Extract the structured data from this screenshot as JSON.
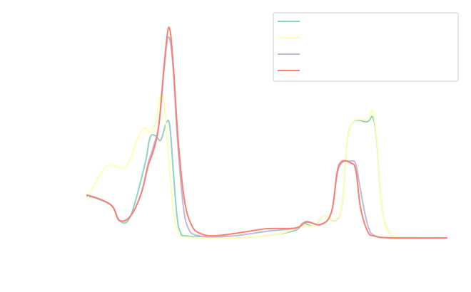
{
  "chart_data": {
    "type": "line",
    "title": "",
    "xlabel": "",
    "ylabel": "",
    "xlim": [
      0,
      100
    ],
    "ylim": [
      0,
      100
    ],
    "grid": false,
    "axes_visible": false,
    "legend": {
      "placement": "top-right",
      "entries": [
        "",
        "",
        "",
        ""
      ]
    },
    "series": [
      {
        "color": "#8dd3c7",
        "points": [
          [
            0,
            19
          ],
          [
            3,
            17.8
          ],
          [
            7,
            14.3
          ],
          [
            9,
            7.8
          ],
          [
            12,
            9.6
          ],
          [
            16,
            33
          ],
          [
            17.5,
            45.6
          ],
          [
            19,
            46.6
          ],
          [
            20.5,
            44.6
          ],
          [
            22,
            52.4
          ],
          [
            23,
            51
          ],
          [
            24,
            30
          ],
          [
            25,
            10
          ],
          [
            26,
            2.5
          ],
          [
            28,
            0.8
          ],
          [
            40,
            0
          ],
          [
            50,
            1
          ],
          [
            58,
            3.5
          ],
          [
            60,
            6.7
          ],
          [
            63,
            5.5
          ],
          [
            66,
            10.2
          ],
          [
            69,
            8
          ],
          [
            71,
            16
          ],
          [
            73,
            50
          ],
          [
            78,
            53
          ],
          [
            79.4,
            55
          ],
          [
            80.5,
            45
          ],
          [
            82,
            14
          ],
          [
            84,
            2.5
          ],
          [
            87,
            0.3
          ],
          [
            100,
            0
          ]
        ]
      },
      {
        "color": "#ffffb3",
        "points": [
          [
            0,
            17.5
          ],
          [
            2,
            24
          ],
          [
            5,
            32
          ],
          [
            7,
            33.2
          ],
          [
            10,
            31.8
          ],
          [
            12,
            36
          ],
          [
            14,
            45
          ],
          [
            16,
            50
          ],
          [
            17.5,
            48
          ],
          [
            19,
            52.6
          ],
          [
            20.5,
            65
          ],
          [
            21.5,
            60
          ],
          [
            23,
            30
          ],
          [
            24,
            12
          ],
          [
            25.5,
            2
          ],
          [
            28,
            0.3
          ],
          [
            40,
            0
          ],
          [
            50,
            1
          ],
          [
            55,
            2.5
          ],
          [
            60,
            5.5
          ],
          [
            63,
            5.5
          ],
          [
            66,
            10.2
          ],
          [
            69,
            8.2
          ],
          [
            71,
            16
          ],
          [
            73,
            50
          ],
          [
            78,
            54
          ],
          [
            79.3,
            58
          ],
          [
            80.5,
            46
          ],
          [
            82,
            14
          ],
          [
            84,
            2.5
          ],
          [
            87,
            0.3
          ],
          [
            100,
            0
          ]
        ]
      },
      {
        "color": "#bebada",
        "points": [
          [
            0,
            19.5
          ],
          [
            3,
            18
          ],
          [
            7,
            14.5
          ],
          [
            9,
            8
          ],
          [
            12,
            9.8
          ],
          [
            15,
            20
          ],
          [
            17,
            34
          ],
          [
            18.5,
            42
          ],
          [
            20,
            52
          ],
          [
            21.5,
            78
          ],
          [
            22.6,
            91.6
          ],
          [
            23.8,
            80
          ],
          [
            25,
            48
          ],
          [
            26.5,
            18
          ],
          [
            28,
            5
          ],
          [
            31,
            1
          ],
          [
            40,
            0.8
          ],
          [
            50,
            3
          ],
          [
            58,
            4.5
          ],
          [
            61,
            7.5
          ],
          [
            65,
            6
          ],
          [
            68,
            12
          ],
          [
            70,
            32
          ],
          [
            73.5,
            35
          ],
          [
            74.8,
            33
          ],
          [
            76,
            22
          ],
          [
            78,
            6
          ],
          [
            80,
            1
          ],
          [
            85,
            0
          ],
          [
            100,
            0
          ]
        ]
      },
      {
        "color": "#fb8072",
        "points": [
          [
            0,
            19.5
          ],
          [
            3,
            18
          ],
          [
            7,
            14.5
          ],
          [
            9,
            8
          ],
          [
            12,
            9.8
          ],
          [
            15,
            20
          ],
          [
            17,
            33
          ],
          [
            18.5,
            40
          ],
          [
            20,
            52
          ],
          [
            21.5,
            80
          ],
          [
            22.8,
            96
          ],
          [
            24,
            78
          ],
          [
            25.3,
            45
          ],
          [
            27,
            18
          ],
          [
            29,
            6
          ],
          [
            31.5,
            2
          ],
          [
            36,
            1
          ],
          [
            45,
            3
          ],
          [
            50,
            4.2
          ],
          [
            58,
            4.5
          ],
          [
            61,
            7.2
          ],
          [
            65,
            6.2
          ],
          [
            68,
            12
          ],
          [
            70,
            33
          ],
          [
            73.5,
            34
          ],
          [
            74.8,
            30
          ],
          [
            76,
            14
          ],
          [
            78,
            3
          ],
          [
            80,
            0.8
          ],
          [
            85,
            0
          ],
          [
            100,
            0
          ]
        ]
      }
    ]
  }
}
